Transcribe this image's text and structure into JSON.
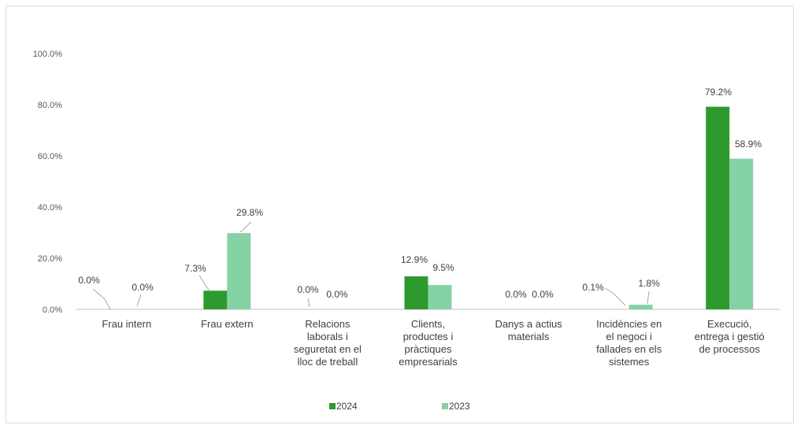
{
  "chart_data": {
    "type": "bar",
    "title": "",
    "xlabel": "",
    "ylabel": "",
    "ylim": [
      0,
      100
    ],
    "yticks": [
      "0.0%",
      "20.0%",
      "40.0%",
      "60.0%",
      "80.0%",
      "100.0%"
    ],
    "grid": false,
    "legend_position": "bottom",
    "categories": [
      [
        "Frau intern"
      ],
      [
        "Frau extern"
      ],
      [
        "Relacions",
        "laborals i",
        "seguretat en el",
        "lloc de treball"
      ],
      [
        "Clients,",
        "productes i",
        "pràctiques",
        "empresarials"
      ],
      [
        "Danys a actius",
        "materials"
      ],
      [
        "Incidències en",
        "el negoci i",
        "fallades en els",
        "sistemes"
      ],
      [
        "Execució,",
        "entrega i gestió",
        "de processos"
      ]
    ],
    "series": [
      {
        "name": "2024",
        "color": "#2e9a2e",
        "values": [
          0.0,
          7.3,
          0.0,
          12.9,
          0.0,
          0.1,
          79.2
        ],
        "labels": [
          "0.0%",
          "7.3%",
          "0.0%",
          "12.9%",
          "0.0%",
          "0.1%",
          "79.2%"
        ]
      },
      {
        "name": "2023",
        "color": "#85d2a5",
        "values": [
          0.0,
          29.8,
          0.0,
          9.5,
          0.0,
          1.8,
          58.9
        ],
        "labels": [
          "0.0%",
          "29.8%",
          "0.0%",
          "9.5%",
          "0.0%",
          "1.8%",
          "58.9%"
        ]
      }
    ]
  }
}
